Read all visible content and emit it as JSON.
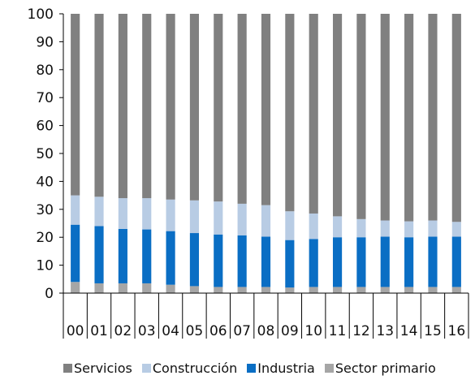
{
  "chart_data": {
    "type": "bar",
    "stacked": true,
    "categories": [
      "00",
      "01",
      "02",
      "03",
      "04",
      "05",
      "06",
      "07",
      "08",
      "09",
      "10",
      "11",
      "12",
      "13",
      "14",
      "15",
      "16"
    ],
    "ylim": [
      0,
      100
    ],
    "yticks": [
      0,
      10,
      20,
      30,
      40,
      50,
      60,
      70,
      80,
      90,
      100
    ],
    "series": [
      {
        "name": "Sector primario",
        "color": "#a6a6a6",
        "values": [
          4,
          3.5,
          3.5,
          3.5,
          3,
          2.5,
          2.2,
          2.2,
          2.2,
          2,
          2.2,
          2.2,
          2.2,
          2.2,
          2.2,
          2.2,
          2.2
        ]
      },
      {
        "name": "Industria",
        "color": "#0a6ec4",
        "values": [
          20.5,
          20.5,
          19.5,
          19.3,
          19.2,
          19,
          18.8,
          18.5,
          18,
          17,
          17.2,
          17.8,
          17.8,
          18,
          17.8,
          18,
          18
        ]
      },
      {
        "name": "Construcción",
        "color": "#b8cce4",
        "values": [
          10.5,
          10.5,
          11,
          11.2,
          11.3,
          11.7,
          11.8,
          11.3,
          11.3,
          10.3,
          9.1,
          7.5,
          6.5,
          5.8,
          5.7,
          5.8,
          5.3
        ]
      },
      {
        "name": "Servicios",
        "color": "#808080",
        "values": [
          65,
          65.5,
          66,
          66,
          66.5,
          66.8,
          67.2,
          68,
          68.5,
          70.7,
          71.5,
          72.5,
          73.5,
          74,
          74.3,
          74,
          74.5
        ]
      }
    ],
    "legend_position": "bottom",
    "legend_order": [
      "Servicios",
      "Construcción",
      "Industria",
      "Sector primario"
    ],
    "grid": false
  }
}
